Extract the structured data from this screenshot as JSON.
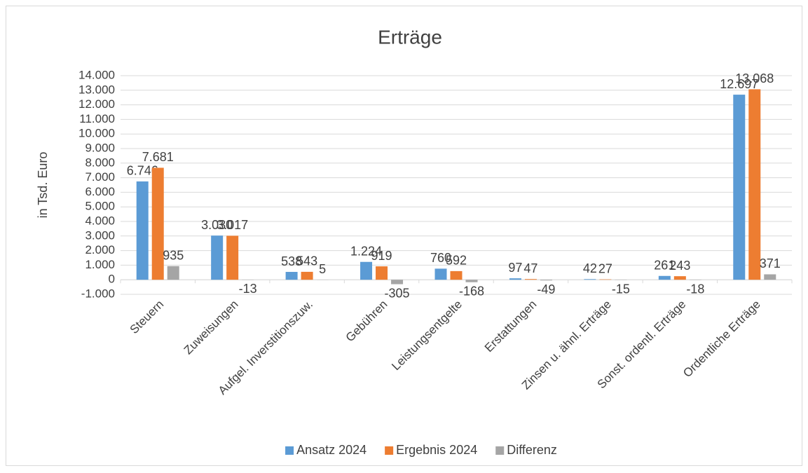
{
  "chart_data": {
    "type": "bar",
    "title": "Erträge",
    "y_label": "in Tsd. Euro",
    "categories": [
      "Steuern",
      "Zuweisungen",
      "Aufgel. Inverstitionszuw.",
      "Gebühren",
      "Leistungsentgelte",
      "Erstattungen",
      "Zinsen u. ähnl. Erträge",
      "Sonst. ordentl. Erträge",
      "Ordentliche Erträge"
    ],
    "series": [
      {
        "name": "Ansatz 2024",
        "color": "#5b9bd5",
        "values": [
          6746,
          3030,
          538,
          1224,
          760,
          97,
          42,
          261,
          12697
        ],
        "value_labels": [
          "6.746",
          "3.030",
          "538",
          "1.224",
          "760",
          "97",
          "42",
          "261",
          "12.697"
        ]
      },
      {
        "name": "Ergebnis 2024",
        "color": "#ed7d31",
        "values": [
          7681,
          3017,
          543,
          919,
          592,
          47,
          27,
          243,
          13068
        ],
        "value_labels": [
          "7.681",
          "3.017",
          "543",
          "919",
          "592",
          "47",
          "27",
          "243",
          "13.068"
        ]
      },
      {
        "name": "Differenz",
        "color": "#a5a5a5",
        "values": [
          935,
          -13,
          5,
          -305,
          -168,
          -49,
          -15,
          -18,
          371
        ],
        "value_labels": [
          "935",
          "-13",
          "5",
          "-305",
          "-168",
          "-49",
          "-15",
          "-18",
          "371"
        ]
      }
    ],
    "ylim": [
      -1000,
      14000
    ],
    "yticks": [
      {
        "value": -1000,
        "label": "-1.000"
      },
      0,
      {
        "value": 1000,
        "label": "1.000"
      },
      {
        "value": 2000,
        "label": "2.000"
      },
      {
        "value": 3000,
        "label": "3.000"
      },
      {
        "value": 4000,
        "label": "4.000"
      },
      {
        "value": 5000,
        "label": "5.000"
      },
      {
        "value": 6000,
        "label": "6.000"
      },
      {
        "value": 7000,
        "label": "7.000"
      },
      {
        "value": 8000,
        "label": "8.000"
      },
      {
        "value": 9000,
        "label": "9.000"
      },
      {
        "value": 10000,
        "label": "10.000"
      },
      {
        "value": 11000,
        "label": "11.000"
      },
      {
        "value": 12000,
        "label": "12.000"
      },
      {
        "value": 13000,
        "label": "13.000"
      },
      {
        "value": 14000,
        "label": "14.000"
      }
    ],
    "grid": true,
    "legend": "bottom"
  }
}
